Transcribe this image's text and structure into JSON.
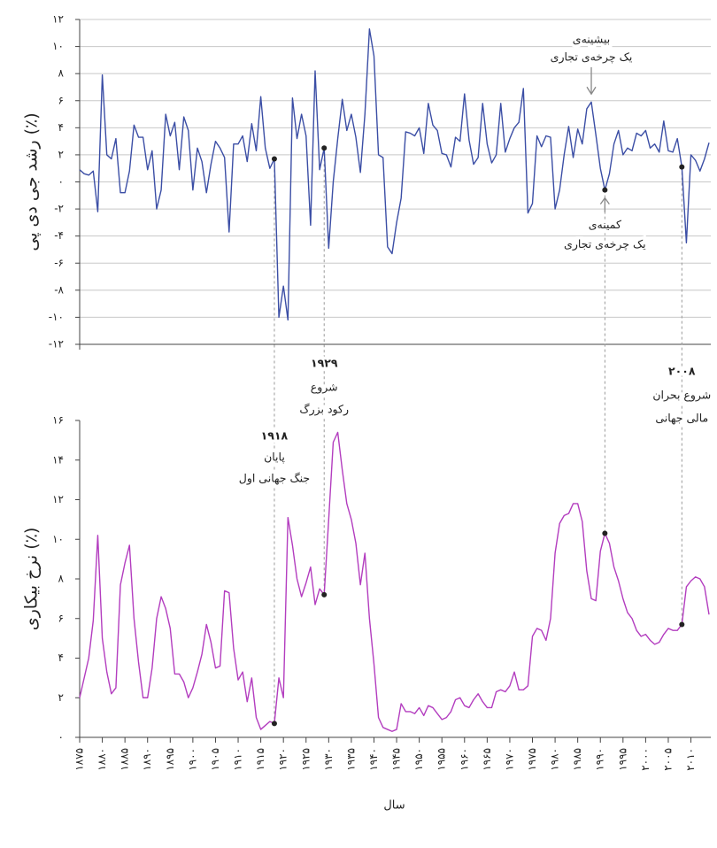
{
  "chart_data": [
    {
      "type": "line",
      "ylabel": "رشد جی دی پی (٪)",
      "color": "#3b4ea5",
      "x": [
        1875,
        1876,
        1877,
        1878,
        1879,
        1880,
        1881,
        1882,
        1883,
        1884,
        1885,
        1886,
        1887,
        1888,
        1889,
        1890,
        1891,
        1892,
        1893,
        1894,
        1895,
        1896,
        1897,
        1898,
        1899,
        1900,
        1901,
        1902,
        1903,
        1904,
        1905,
        1906,
        1907,
        1908,
        1909,
        1910,
        1911,
        1912,
        1913,
        1914,
        1915,
        1916,
        1917,
        1918,
        1919,
        1920,
        1921,
        1922,
        1923,
        1924,
        1925,
        1926,
        1927,
        1928,
        1929,
        1930,
        1931,
        1932,
        1933,
        1934,
        1935,
        1936,
        1937,
        1938,
        1939,
        1940,
        1941,
        1942,
        1943,
        1944,
        1945,
        1946,
        1947,
        1948,
        1949,
        1950,
        1951,
        1952,
        1953,
        1954,
        1955,
        1956,
        1957,
        1958,
        1959,
        1960,
        1961,
        1962,
        1963,
        1964,
        1965,
        1966,
        1967,
        1968,
        1969,
        1970,
        1971,
        1972,
        1973,
        1974,
        1975,
        1976,
        1977,
        1978,
        1979,
        1980,
        1981,
        1982,
        1983,
        1984,
        1985,
        1986,
        1987,
        1988,
        1989,
        1990,
        1991,
        1992,
        1993,
        1994,
        1995,
        1996,
        1997,
        1998,
        1999,
        2000,
        2001,
        2002,
        2003,
        2004,
        2005,
        2006,
        2007,
        2008,
        2009,
        2010,
        2011,
        2012,
        2013,
        2014
      ],
      "values": [
        0.9,
        0.6,
        0.5,
        0.8,
        -2.2,
        7.9,
        2.0,
        1.7,
        3.2,
        -0.8,
        -0.8,
        0.8,
        4.2,
        3.3,
        3.3,
        0.9,
        2.3,
        -2.0,
        -0.6,
        5.0,
        3.4,
        4.4,
        0.9,
        4.8,
        3.8,
        -0.6,
        2.5,
        1.5,
        -0.8,
        1.3,
        3.0,
        2.5,
        1.8,
        -3.7,
        2.8,
        2.8,
        3.4,
        1.5,
        4.3,
        2.3,
        6.3,
        2.5,
        1.0,
        1.7,
        -10.0,
        -7.7,
        -10.2,
        6.2,
        3.2,
        5.0,
        3.4,
        -3.2,
        8.2,
        0.9,
        2.5,
        -4.9,
        0.0,
        3.2,
        6.1,
        3.8,
        5.0,
        3.3,
        0.7,
        5.0,
        11.3,
        9.3,
        2.0,
        1.8,
        -4.8,
        -5.3,
        -3.0,
        -1.2,
        3.7,
        3.6,
        3.4,
        4.0,
        2.1,
        5.8,
        4.2,
        3.8,
        2.1,
        2.0,
        1.1,
        3.3,
        3.0,
        6.5,
        3.1,
        1.3,
        1.8,
        5.8,
        2.8,
        1.4,
        2.0,
        5.8,
        2.2,
        3.2,
        4.0,
        4.4,
        6.9,
        -2.3,
        -1.6,
        3.4,
        2.6,
        3.4,
        3.3,
        -2.0,
        -0.6,
        2.0,
        4.1,
        1.8,
        3.9,
        2.8,
        5.4,
        5.9,
        3.5,
        1.0,
        -0.6,
        0.6,
        2.8,
        3.8,
        2.0,
        2.5,
        2.3,
        3.6,
        3.4,
        3.8,
        2.5,
        2.8,
        2.2,
        4.5,
        2.3,
        2.2,
        3.2,
        1.1,
        -4.5,
        2.0,
        1.6,
        0.8,
        1.7,
        2.9
      ],
      "xlim": [
        1875,
        2014
      ],
      "ylim": [
        -12,
        12
      ],
      "yticks": [
        {
          "value": -12,
          "label": "-۱۲"
        },
        {
          "value": -10,
          "label": "-۱۰"
        },
        {
          "value": -8,
          "label": "-۸"
        },
        {
          "value": -6,
          "label": "-۶"
        },
        {
          "value": -4,
          "label": "-۴"
        },
        {
          "value": -2,
          "label": "-۲"
        },
        {
          "value": 0,
          "label": "۰"
        },
        {
          "value": 2,
          "label": "۲"
        },
        {
          "value": 4,
          "label": "۴"
        },
        {
          "value": 6,
          "label": "۶"
        },
        {
          "value": 8,
          "label": "۸"
        },
        {
          "value": 10,
          "label": "۱۰"
        },
        {
          "value": 12,
          "label": "۱۲"
        }
      ],
      "grid": true,
      "annotations": [
        {
          "text": [
            "بیشینه‌ی",
            "یک چرخه‌ی تجاری"
          ],
          "x": 1988
        },
        {
          "text": [
            "کمینه‌ی",
            "یک چرخه‌ی تجاری"
          ],
          "x": 1991
        }
      ]
    },
    {
      "type": "line",
      "ylabel": "نرخ بیکاری (٪)",
      "xlabel": "سال",
      "color": "#b33dbf",
      "x": [
        1875,
        1876,
        1877,
        1878,
        1879,
        1880,
        1881,
        1882,
        1883,
        1884,
        1885,
        1886,
        1887,
        1888,
        1889,
        1890,
        1891,
        1892,
        1893,
        1894,
        1895,
        1896,
        1897,
        1898,
        1899,
        1900,
        1901,
        1902,
        1903,
        1904,
        1905,
        1906,
        1907,
        1908,
        1909,
        1910,
        1911,
        1912,
        1913,
        1914,
        1915,
        1916,
        1917,
        1918,
        1919,
        1920,
        1921,
        1922,
        1923,
        1924,
        1925,
        1926,
        1927,
        1928,
        1929,
        1930,
        1931,
        1932,
        1933,
        1934,
        1935,
        1936,
        1937,
        1938,
        1939,
        1940,
        1941,
        1942,
        1943,
        1944,
        1945,
        1946,
        1947,
        1948,
        1949,
        1950,
        1951,
        1952,
        1953,
        1954,
        1955,
        1956,
        1957,
        1958,
        1959,
        1960,
        1961,
        1962,
        1963,
        1964,
        1965,
        1966,
        1967,
        1968,
        1969,
        1970,
        1971,
        1972,
        1973,
        1974,
        1975,
        1976,
        1977,
        1978,
        1979,
        1980,
        1981,
        1982,
        1983,
        1984,
        1985,
        1986,
        1987,
        1988,
        1989,
        1990,
        1991,
        1992,
        1993,
        1994,
        1995,
        1996,
        1997,
        1998,
        1999,
        2000,
        2001,
        2002,
        2003,
        2004,
        2005,
        2006,
        2007,
        2008,
        2009,
        2010,
        2011,
        2012,
        2013,
        2014
      ],
      "values": [
        2.0,
        3.0,
        4.0,
        5.9,
        10.2,
        5.0,
        3.3,
        2.2,
        2.5,
        7.7,
        8.8,
        9.7,
        6.0,
        3.8,
        2.0,
        2.0,
        3.5,
        6.0,
        7.1,
        6.5,
        5.5,
        3.2,
        3.2,
        2.8,
        2.0,
        2.5,
        3.3,
        4.2,
        5.7,
        4.8,
        3.5,
        3.6,
        7.4,
        7.3,
        4.5,
        2.9,
        3.3,
        1.8,
        3.0,
        1.0,
        0.4,
        0.6,
        0.8,
        0.7,
        3.0,
        2.0,
        11.1,
        9.7,
        8.0,
        7.1,
        7.8,
        8.6,
        6.7,
        7.5,
        7.2,
        11.0,
        14.9,
        15.4,
        13.5,
        11.8,
        11.0,
        9.8,
        7.7,
        9.3,
        6.0,
        3.7,
        1.0,
        0.5,
        0.4,
        0.3,
        0.4,
        1.7,
        1.3,
        1.3,
        1.2,
        1.5,
        1.1,
        1.6,
        1.5,
        1.2,
        0.9,
        1.0,
        1.3,
        1.9,
        2.0,
        1.6,
        1.5,
        1.9,
        2.2,
        1.8,
        1.5,
        1.5,
        2.3,
        2.4,
        2.3,
        2.6,
        3.3,
        2.4,
        2.4,
        2.6,
        5.1,
        5.5,
        5.4,
        4.9,
        6.0,
        9.3,
        10.8,
        11.2,
        11.3,
        11.8,
        11.8,
        10.9,
        8.4,
        7.0,
        6.9,
        9.4,
        10.3,
        9.8,
        8.6,
        7.9,
        7.0,
        6.3,
        6.0,
        5.4,
        5.1,
        5.2,
        4.9,
        4.7,
        4.8,
        5.2,
        5.5,
        5.4,
        5.4,
        5.7,
        7.6,
        7.9,
        8.1,
        8.0,
        7.6,
        6.2
      ],
      "xlim": [
        1875,
        2014
      ],
      "ylim": [
        0,
        16
      ],
      "yticks": [
        {
          "value": 0,
          "label": "۰"
        },
        {
          "value": 2,
          "label": "۲"
        },
        {
          "value": 4,
          "label": "۴"
        },
        {
          "value": 6,
          "label": "۶"
        },
        {
          "value": 8,
          "label": "۸"
        },
        {
          "value": 10,
          "label": "۱۰"
        },
        {
          "value": 12,
          "label": "۱۲"
        },
        {
          "value": 14,
          "label": "۱۴"
        },
        {
          "value": 16,
          "label": "۱۶"
        }
      ],
      "xticks": [
        {
          "value": 1875,
          "label": "۱۸۷۵"
        },
        {
          "value": 1880,
          "label": "۱۸۸۰"
        },
        {
          "value": 1885,
          "label": "۱۸۸۵"
        },
        {
          "value": 1890,
          "label": "۱۸۹۰"
        },
        {
          "value": 1895,
          "label": "۱۸۹۵"
        },
        {
          "value": 1900,
          "label": "۱۹۰۰"
        },
        {
          "value": 1905,
          "label": "۱۹۰۵"
        },
        {
          "value": 1910,
          "label": "۱۹۱۰"
        },
        {
          "value": 1915,
          "label": "۱۹۱۵"
        },
        {
          "value": 1920,
          "label": "۱۹۲۰"
        },
        {
          "value": 1925,
          "label": "۱۹۲۵"
        },
        {
          "value": 1930,
          "label": "۱۹۳۰"
        },
        {
          "value": 1935,
          "label": "۱۹۳۵"
        },
        {
          "value": 1940,
          "label": "۱۹۴۰"
        },
        {
          "value": 1945,
          "label": "۱۹۴۵"
        },
        {
          "value": 1950,
          "label": "۱۹۵۰"
        },
        {
          "value": 1955,
          "label": "۱۹۵۵"
        },
        {
          "value": 1960,
          "label": "۱۹۶۰"
        },
        {
          "value": 1965,
          "label": "۱۹۶۵"
        },
        {
          "value": 1970,
          "label": "۱۹۷۰"
        },
        {
          "value": 1975,
          "label": "۱۹۷۵"
        },
        {
          "value": 1980,
          "label": "۱۹۸۰"
        },
        {
          "value": 1985,
          "label": "۱۹۸۵"
        },
        {
          "value": 1990,
          "label": "۱۹۹۰"
        },
        {
          "value": 1995,
          "label": "۱۹۹۵"
        },
        {
          "value": 2000,
          "label": "۲۰۰۰"
        },
        {
          "value": 2005,
          "label": "۲۰۰۵"
        },
        {
          "value": 2010,
          "label": "۲۰۱۰"
        }
      ],
      "grid": false
    }
  ],
  "events": [
    {
      "year": {
        "value": 1918,
        "label": "۱۹۱۸"
      },
      "text": [
        "پایان",
        "جنگ جهانی اول"
      ]
    },
    {
      "year": {
        "value": 1929,
        "label": "۱۹۲۹"
      },
      "text": [
        "شروع",
        "رکود بزرگ"
      ]
    },
    {
      "year": {
        "value": 2008,
        "label": "۲۰۰۸"
      },
      "text": [
        "شروع بحران",
        "مالی جهانی"
      ]
    }
  ]
}
